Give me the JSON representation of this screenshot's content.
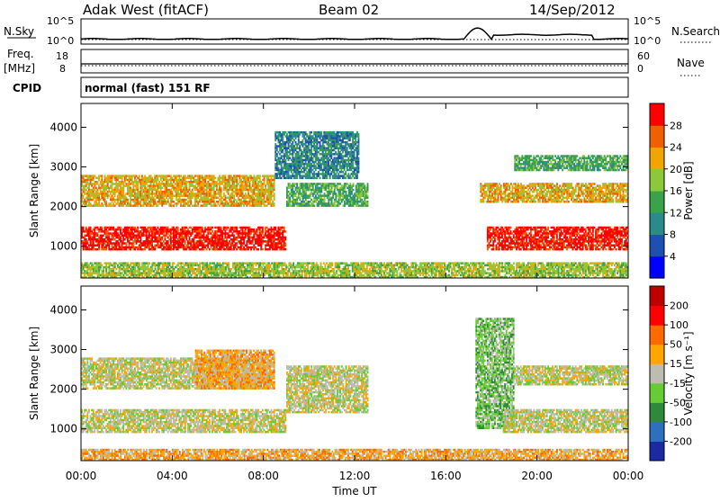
{
  "header": {
    "station": "Adak West (fitACF)",
    "beam": "Beam 02",
    "date": "14/Sep/2012"
  },
  "top_panels": {
    "nsky_label": "N.Sky",
    "nsearch_label": "N.Search",
    "nsky_ticks": [
      "10^5",
      "10^0"
    ],
    "nsearch_ticks": [
      "10^5",
      "10^0"
    ],
    "freq_label": "Freq.",
    "freq_unit": "[MHz]",
    "freq_ticks": [
      "18",
      "8"
    ],
    "nave_label": "Nave",
    "nave_ticks": [
      "60",
      "0"
    ],
    "cpid_label": "CPID",
    "cpid_text": "normal (fast) 151 RF"
  },
  "chart_data": [
    {
      "type": "heatmap",
      "quantity": "Power",
      "ylabel": "Slant Range [km]",
      "yticks": [
        "4000",
        "3000",
        "2000",
        "1000"
      ],
      "ylim": [
        200,
        4600
      ],
      "xlim": [
        0,
        24
      ],
      "colorbar_label": "Power [dB]",
      "colorbar_ticks": [
        "28",
        "24",
        "20",
        "16",
        "12",
        "8",
        "4"
      ],
      "colors": [
        "#0000ff",
        "#1f4fb0",
        "#2b8a8a",
        "#3aa24a",
        "#8cc83c",
        "#f0a500",
        "#f06000",
        "#ff0000"
      ],
      "features": [
        {
          "t0": 0.0,
          "t1": 9.0,
          "r0": 900,
          "r1": 1500,
          "level": 7
        },
        {
          "t0": 0.0,
          "t1": 8.5,
          "r0": 2000,
          "r1": 2800,
          "level": 5
        },
        {
          "t0": 9.0,
          "t1": 12.6,
          "r0": 2000,
          "r1": 2600,
          "level": 3
        },
        {
          "t0": 8.5,
          "t1": 12.2,
          "r0": 2700,
          "r1": 3900,
          "level": 2
        },
        {
          "t0": 17.8,
          "t1": 24.0,
          "r0": 900,
          "r1": 1500,
          "level": 7
        },
        {
          "t0": 17.5,
          "t1": 24.0,
          "r0": 2100,
          "r1": 2600,
          "level": 5
        },
        {
          "t0": 19.0,
          "t1": 24.0,
          "r0": 2900,
          "r1": 3300,
          "level": 3
        },
        {
          "t0": 0.0,
          "t1": 24.0,
          "r0": 200,
          "r1": 600,
          "level": 4
        }
      ]
    },
    {
      "type": "heatmap",
      "quantity": "Velocity",
      "ylabel": "Slant Range [km]",
      "yticks": [
        "4000",
        "3000",
        "2000",
        "1000"
      ],
      "ylim": [
        200,
        4600
      ],
      "xlim": [
        0,
        24
      ],
      "colorbar_label": "Velocity [m s⁻¹]",
      "colorbar_ticks": [
        "200",
        "100",
        "50",
        "15",
        "-15",
        "-50",
        "-100",
        "-200"
      ],
      "colors": [
        "#1a2aa0",
        "#2f6fc0",
        "#2e8a3a",
        "#66cc33",
        "#bcbcb0",
        "#ffa500",
        "#ff6a00",
        "#ff0000",
        "#c00000"
      ],
      "features": [
        {
          "t0": 0.0,
          "t1": 9.0,
          "r0": 900,
          "r1": 1500,
          "level": 4
        },
        {
          "t0": 0.0,
          "t1": 8.5,
          "r0": 2000,
          "r1": 2800,
          "level": 4
        },
        {
          "t0": 5.0,
          "t1": 8.5,
          "r0": 2000,
          "r1": 3000,
          "level": 5
        },
        {
          "t0": 9.0,
          "t1": 12.6,
          "r0": 1400,
          "r1": 2600,
          "level": 4
        },
        {
          "t0": 17.3,
          "t1": 19.0,
          "r0": 1000,
          "r1": 3800,
          "level": 3
        },
        {
          "t0": 18.5,
          "t1": 24.0,
          "r0": 900,
          "r1": 1500,
          "level": 4
        },
        {
          "t0": 19.0,
          "t1": 24.0,
          "r0": 2100,
          "r1": 2600,
          "level": 4
        },
        {
          "t0": 0.0,
          "t1": 24.0,
          "r0": 200,
          "r1": 500,
          "level": 5
        }
      ]
    }
  ],
  "time_axis": {
    "ticks": [
      "00:00",
      "04:00",
      "08:00",
      "12:00",
      "16:00",
      "20:00",
      "00:00"
    ],
    "label": "Time UT"
  }
}
